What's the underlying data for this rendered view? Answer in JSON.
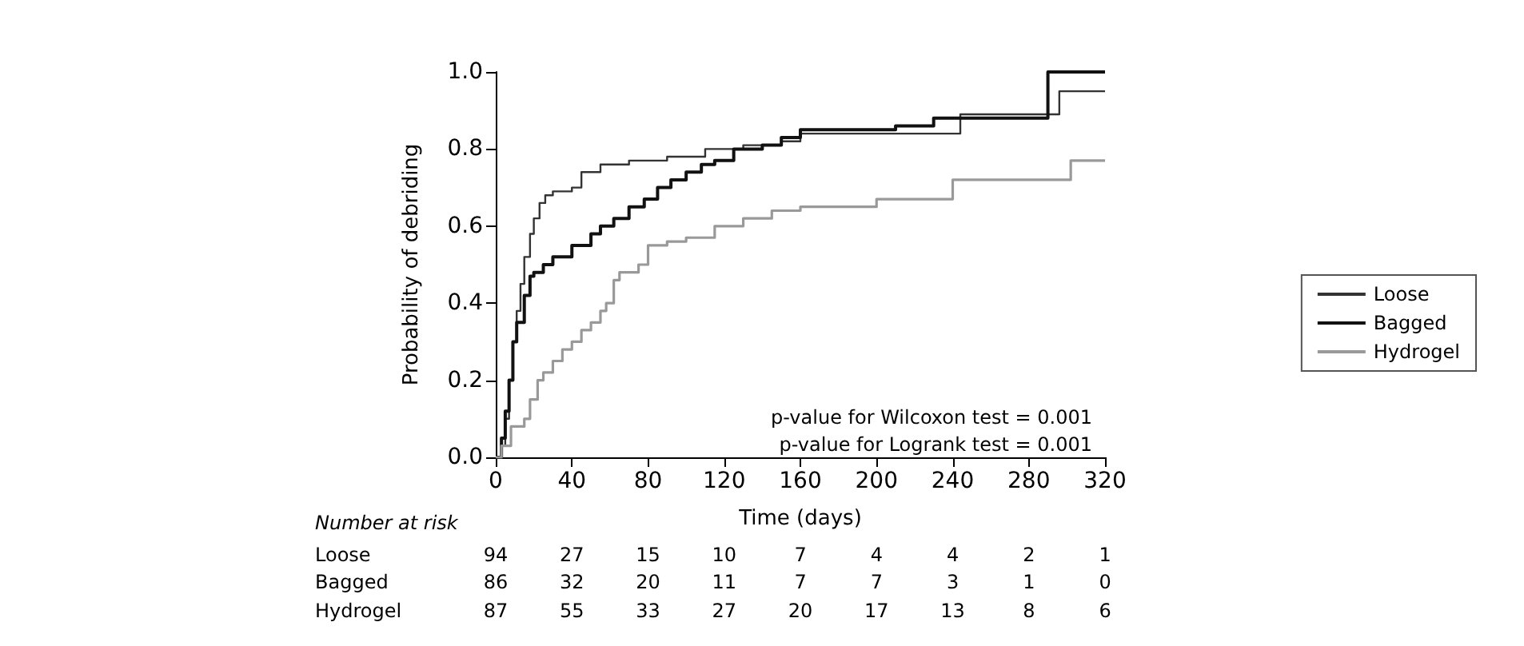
{
  "chart_data": {
    "type": "step",
    "xlabel": "Time (days)",
    "ylabel": "Probability of debriding",
    "xlim": [
      0,
      320
    ],
    "xticks": [
      0,
      40,
      80,
      120,
      160,
      200,
      240,
      280,
      320
    ],
    "ylim": [
      0,
      1
    ],
    "yticks": [
      {
        "value": 0,
        "label": "0.0"
      },
      {
        "value": 0.2,
        "label": "0.2"
      },
      {
        "value": 0.4,
        "label": "0.4"
      },
      {
        "value": 0.6,
        "label": "0.6"
      },
      {
        "value": 0.8,
        "label": "0.8"
      },
      {
        "value": 1,
        "label": "1.0"
      }
    ],
    "grid": false,
    "legend": "right",
    "marker": "none",
    "series": [
      {
        "name": "Loose",
        "color": "#333333",
        "x": [
          0,
          3,
          5,
          7,
          9,
          11,
          13,
          15,
          18,
          20,
          23,
          26,
          30,
          40,
          45,
          55,
          70,
          90,
          110,
          130,
          150,
          160,
          244,
          296,
          320
        ],
        "values": [
          0,
          0.03,
          0.1,
          0.2,
          0.3,
          0.38,
          0.45,
          0.52,
          0.58,
          0.62,
          0.66,
          0.68,
          0.69,
          0.7,
          0.74,
          0.76,
          0.77,
          0.78,
          0.8,
          0.81,
          0.82,
          0.84,
          0.89,
          0.95,
          0.95
        ]
      },
      {
        "name": "Bagged",
        "color": "#111111",
        "x": [
          0,
          3,
          5,
          7,
          9,
          11,
          15,
          18,
          20,
          25,
          30,
          40,
          50,
          55,
          62,
          70,
          78,
          85,
          92,
          100,
          108,
          115,
          125,
          140,
          150,
          160,
          210,
          230,
          290,
          320
        ],
        "values": [
          0,
          0.05,
          0.12,
          0.2,
          0.3,
          0.35,
          0.42,
          0.47,
          0.48,
          0.5,
          0.52,
          0.55,
          0.58,
          0.6,
          0.62,
          0.65,
          0.67,
          0.7,
          0.72,
          0.74,
          0.76,
          0.77,
          0.8,
          0.81,
          0.83,
          0.85,
          0.86,
          0.88,
          1.0,
          1.0
        ]
      },
      {
        "name": "Hydrogel",
        "color": "#999999",
        "x": [
          0,
          3,
          8,
          15,
          18,
          22,
          25,
          30,
          35,
          40,
          45,
          50,
          55,
          58,
          62,
          65,
          75,
          80,
          90,
          100,
          115,
          130,
          145,
          160,
          200,
          240,
          302,
          320
        ],
        "values": [
          0,
          0.03,
          0.08,
          0.1,
          0.15,
          0.2,
          0.22,
          0.25,
          0.28,
          0.3,
          0.33,
          0.35,
          0.38,
          0.4,
          0.46,
          0.48,
          0.5,
          0.55,
          0.56,
          0.57,
          0.6,
          0.62,
          0.64,
          0.65,
          0.67,
          0.72,
          0.77,
          0.77
        ]
      }
    ],
    "annotations": [
      "p-value for Wilcoxon test = 0.001",
      "p-value for Logrank test = 0.001",
      "Number at risk",
      "Loose 94 27 15 10 7 4 4 2 1",
      "Bagged 86 32 20 11 7 7 3 1 0",
      "Hydrogel 87 55 33 27 20 17 13 8 6"
    ]
  }
}
